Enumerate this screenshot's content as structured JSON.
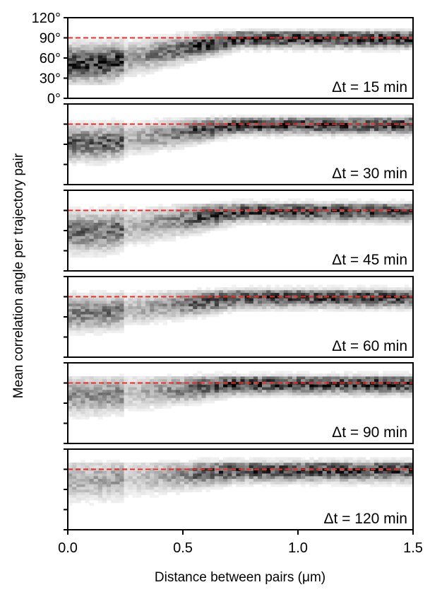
{
  "chart_data": {
    "type": "heatmap",
    "xlabel": "Distance between pairs (μm)",
    "ylabel": "Mean correlation angle per trajectory pair",
    "xlim": [
      0,
      1.5
    ],
    "ylim": [
      0,
      120
    ],
    "x_ticks": [
      0.0,
      0.5,
      1.0,
      1.5
    ],
    "x_tick_labels": [
      "0.0",
      "0.5",
      "1.0",
      "1.5"
    ],
    "y_ticks": [
      0,
      30,
      60,
      90,
      120
    ],
    "y_tick_labels": [
      "0°",
      "30°",
      "60°",
      "90°",
      "120°"
    ],
    "reference_line": {
      "y": 90,
      "color": "#e8302a",
      "style": "dashed"
    },
    "colormap": "greys",
    "panels": [
      {
        "label": "Δt = 15 min",
        "near_center": 52,
        "near_spread": 16,
        "far_center": 89,
        "far_spread": 8,
        "near_intensity": 0.85,
        "far_intensity": 0.9
      },
      {
        "label": "Δt = 30 min",
        "near_center": 62,
        "near_spread": 15,
        "far_center": 89,
        "far_spread": 8,
        "near_intensity": 0.65,
        "far_intensity": 0.85
      },
      {
        "label": "Δt = 45 min",
        "near_center": 58,
        "near_spread": 17,
        "far_center": 89,
        "far_spread": 9,
        "near_intensity": 0.6,
        "far_intensity": 0.8
      },
      {
        "label": "Δt = 60 min",
        "near_center": 66,
        "near_spread": 15,
        "far_center": 89,
        "far_spread": 9,
        "near_intensity": 0.55,
        "far_intensity": 0.8
      },
      {
        "label": "Δt = 90 min",
        "near_center": 72,
        "near_spread": 17,
        "far_center": 89,
        "far_spread": 9,
        "near_intensity": 0.45,
        "far_intensity": 0.85
      },
      {
        "label": "Δt = 120 min",
        "near_center": 75,
        "near_spread": 18,
        "far_center": 89,
        "far_spread": 10,
        "near_intensity": 0.35,
        "far_intensity": 0.8
      }
    ]
  }
}
